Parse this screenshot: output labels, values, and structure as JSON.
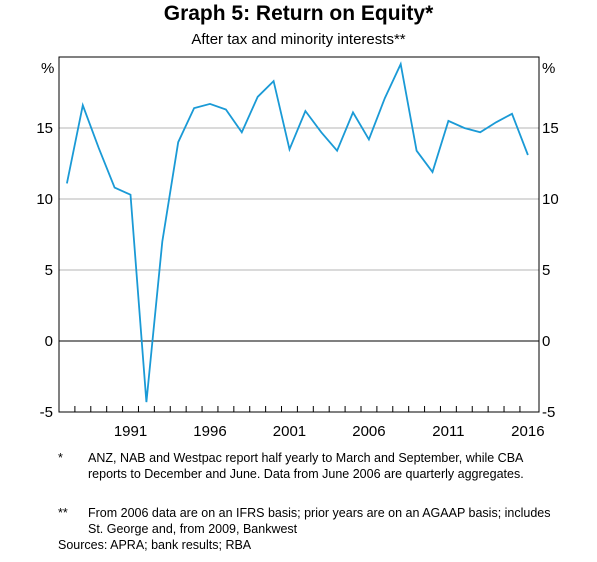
{
  "chart_data": {
    "type": "line",
    "title": "Graph 5: Return on Equity*",
    "subtitle": "After tax and minority interests**",
    "unit_left": "%",
    "unit_right": "%",
    "ylim": [
      -5,
      20
    ],
    "yticks": [
      -5,
      0,
      5,
      10,
      15
    ],
    "xlim": [
      1986.5,
      2016.7
    ],
    "xticks": [
      1991,
      1996,
      2001,
      2006,
      2011,
      2016
    ],
    "line_color": "#1a9ad6",
    "grid": true,
    "series": [
      {
        "x": [
          1987,
          1988,
          1989,
          1990,
          1991,
          1992,
          1993,
          1994,
          1995,
          1996,
          1997,
          1998,
          1999,
          2000,
          2001,
          2002,
          2003,
          2004,
          2005,
          2006,
          2007,
          2008,
          2009,
          2010,
          2011,
          2012,
          2013,
          2014,
          2015,
          2016
        ],
        "values": [
          11.1,
          16.6,
          13.6,
          10.8,
          10.3,
          -4.3,
          7.0,
          14.0,
          16.4,
          16.7,
          16.3,
          14.7,
          17.2,
          18.3,
          13.5,
          16.2,
          14.7,
          13.4,
          16.1,
          14.2,
          17.1,
          19.5,
          13.4,
          11.9,
          15.5,
          15.0,
          14.7,
          15.4,
          16.0,
          13.1
        ]
      }
    ]
  },
  "footnotes": [
    {
      "mark": "*",
      "text": "ANZ, NAB and Westpac report half yearly to March and September, while CBA reports to December and June. Data from June 2006 are quarterly aggregates."
    },
    {
      "mark": "**",
      "text": "From 2006 data are on an IFRS basis; prior years are on an AGAAP basis; includes St. George and, from 2009, Bankwest"
    }
  ],
  "sources": "Sources:   APRA; bank results; RBA"
}
